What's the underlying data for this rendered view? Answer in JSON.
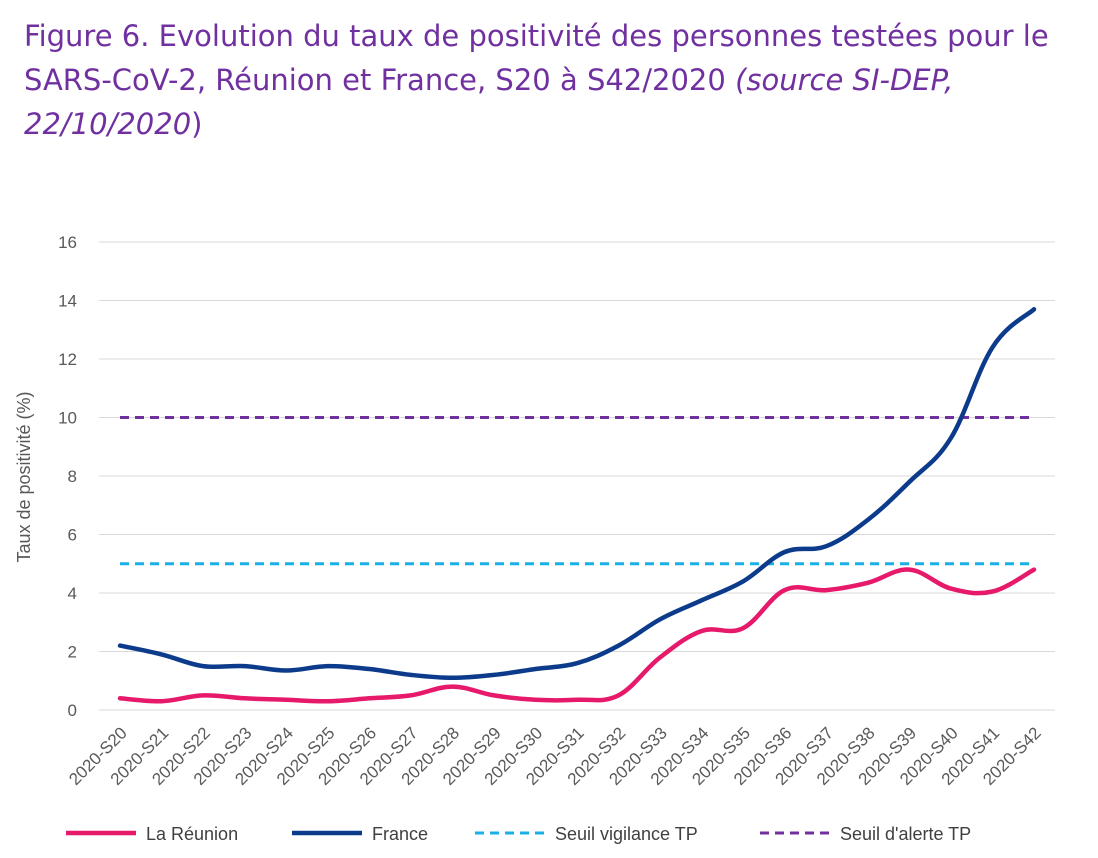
{
  "caption": {
    "figure_label": "Figure 6.",
    "text": " Evolution du taux de positivité des personnes testées pour le SARS-CoV-2, Réunion et France, S20 à S42/2020 ",
    "source_text": "(source SI-DEP, 22/10/2020",
    "closing": ")"
  },
  "chart_data": {
    "type": "line",
    "categories": [
      "2020-S20",
      "2020-S21",
      "2020-S22",
      "2020-S23",
      "2020-S24",
      "2020-S25",
      "2020-S26",
      "2020-S27",
      "2020-S28",
      "2020-S29",
      "2020-S30",
      "2020-S31",
      "2020-S32",
      "2020-S33",
      "2020-S34",
      "2020-S35",
      "2020-S36",
      "2020-S37",
      "2020-S38",
      "2020-S39",
      "2020-S40",
      "2020-S41",
      "2020-S42"
    ],
    "ylabel": "Taux de positivité (%)",
    "xlabel": "",
    "ylim": [
      0,
      16
    ],
    "yticks": [
      0,
      2,
      4,
      6,
      8,
      10,
      12,
      14,
      16
    ],
    "grid": true,
    "legend_position": "bottom",
    "series": [
      {
        "name": "La Réunion",
        "color": "#e6196a",
        "style": "solid",
        "values": [
          0.4,
          0.3,
          0.5,
          0.4,
          0.35,
          0.3,
          0.4,
          0.5,
          0.8,
          0.5,
          0.35,
          0.35,
          0.5,
          1.8,
          2.7,
          2.8,
          4.1,
          4.1,
          4.35,
          4.8,
          4.15,
          4.05,
          4.8
        ]
      },
      {
        "name": "France",
        "color": "#0d3b8c",
        "style": "solid",
        "values": [
          2.2,
          1.9,
          1.5,
          1.5,
          1.35,
          1.5,
          1.4,
          1.2,
          1.1,
          1.2,
          1.4,
          1.6,
          2.2,
          3.1,
          3.75,
          4.4,
          5.4,
          5.6,
          6.5,
          7.8,
          9.3,
          12.4,
          13.7
        ]
      },
      {
        "name": "Seuil vigilance TP",
        "color": "#1ab0e6",
        "style": "dashed",
        "values": [
          5,
          5,
          5,
          5,
          5,
          5,
          5,
          5,
          5,
          5,
          5,
          5,
          5,
          5,
          5,
          5,
          5,
          5,
          5,
          5,
          5,
          5,
          5
        ]
      },
      {
        "name": "Seuil d'alerte TP",
        "color": "#7030a0",
        "style": "dashed",
        "values": [
          10,
          10,
          10,
          10,
          10,
          10,
          10,
          10,
          10,
          10,
          10,
          10,
          10,
          10,
          10,
          10,
          10,
          10,
          10,
          10,
          10,
          10,
          10
        ]
      }
    ]
  }
}
